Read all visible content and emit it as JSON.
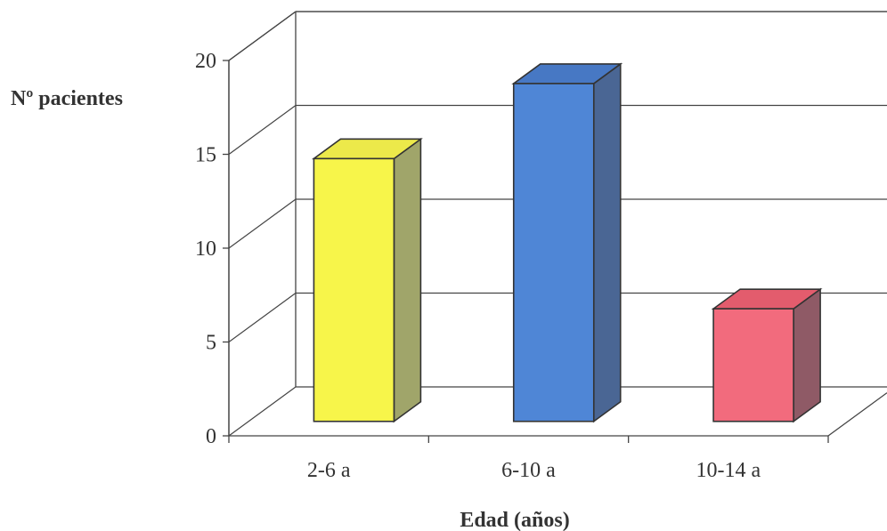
{
  "chart_data": {
    "type": "bar",
    "title": "",
    "xlabel": "Edad (años)",
    "ylabel": "Nº pacientes",
    "categories": [
      "2-6 a",
      "6-10 a",
      "10-14 a"
    ],
    "values": [
      14,
      18,
      6
    ],
    "ylim": [
      0,
      20
    ],
    "yticks": [
      0,
      5,
      10,
      15,
      20
    ],
    "grid": true,
    "style": "3d-column",
    "colors": {
      "front": [
        "#f7f54a",
        "#4f86d6",
        "#f26b7d"
      ],
      "side": [
        "#a0a56a",
        "#4a6694",
        "#8f5a66"
      ],
      "top": [
        "#ece94a",
        "#4778c4",
        "#e35c6d"
      ],
      "grid": "#444444",
      "outline": "#333333"
    }
  }
}
